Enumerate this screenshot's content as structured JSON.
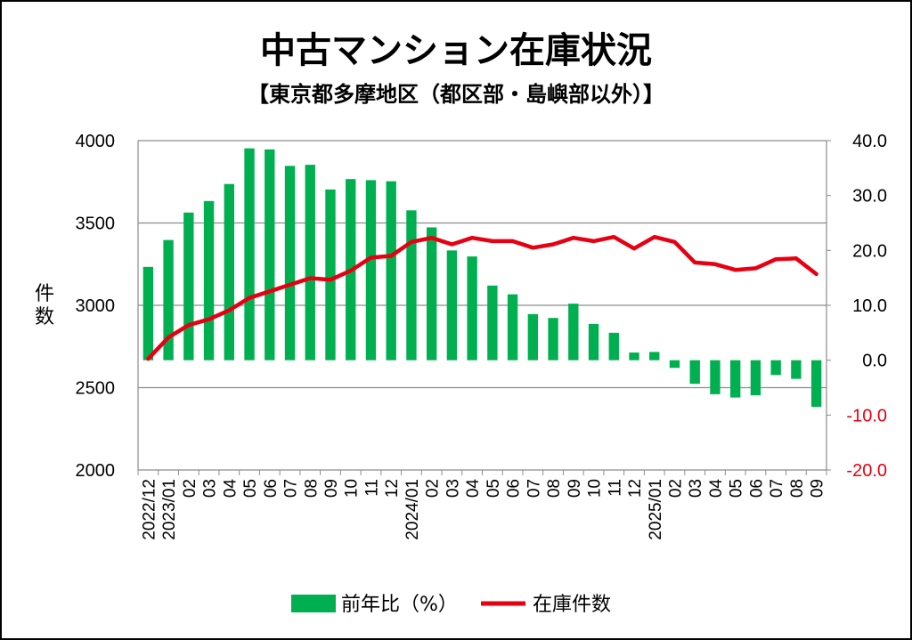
{
  "chart_data": {
    "type": "bar+line",
    "title": "中古マンション在庫状況",
    "subtitle": "【東京都多摩地区（都区部・島嶼部以外）】",
    "ylabel": "件数",
    "categories": [
      "2022/12",
      "2023/01",
      "02",
      "03",
      "04",
      "05",
      "06",
      "07",
      "08",
      "09",
      "10",
      "11",
      "12",
      "2024/01",
      "02",
      "03",
      "04",
      "05",
      "06",
      "07",
      "08",
      "09",
      "10",
      "11",
      "12",
      "2025/01",
      "02",
      "03",
      "04",
      "05",
      "06",
      "07",
      "08",
      "09"
    ],
    "series": [
      {
        "name": "前年比（%）",
        "type": "bar",
        "axis": "right",
        "color": "#00b050",
        "values": [
          17.0,
          21.9,
          26.9,
          29.0,
          32.1,
          38.6,
          38.4,
          35.4,
          35.6,
          31.1,
          33.0,
          32.8,
          32.6,
          27.3,
          24.2,
          20.0,
          18.9,
          13.6,
          12.0,
          8.4,
          7.7,
          10.3,
          6.6,
          5.0,
          1.4,
          1.5,
          -1.4,
          -4.3,
          -6.2,
          -6.8,
          -6.4,
          -2.7,
          -3.4,
          -8.5
        ]
      },
      {
        "name": "在庫件数",
        "type": "line",
        "axis": "left",
        "color": "#e60012",
        "values": [
          2675,
          2805,
          2880,
          2915,
          2970,
          3045,
          3085,
          3125,
          3165,
          3155,
          3210,
          3290,
          3300,
          3385,
          3410,
          3370,
          3410,
          3390,
          3390,
          3350,
          3370,
          3410,
          3390,
          3415,
          3345,
          3415,
          3385,
          3260,
          3250,
          3215,
          3225,
          3280,
          3285,
          3190
        ]
      }
    ],
    "yaxis_left": {
      "min": 2000,
      "max": 4000,
      "step": 500,
      "ticks": [
        "2000",
        "2500",
        "3000",
        "3500",
        "4000"
      ]
    },
    "yaxis_right": {
      "min": -20,
      "max": 40,
      "step": 10,
      "ticks": [
        "-20.0",
        "-10.0",
        "0.0",
        "10.0",
        "20.0",
        "30.0",
        "40.0"
      ]
    },
    "grid": true,
    "legend_position": "bottom",
    "legend": [
      {
        "label": "前年比（%）",
        "kind": "bar",
        "color": "#00b050"
      },
      {
        "label": "在庫件数",
        "kind": "line",
        "color": "#e60012"
      }
    ],
    "right_axis_positive_color": "#000000",
    "right_axis_negative_color": "#e60012"
  }
}
